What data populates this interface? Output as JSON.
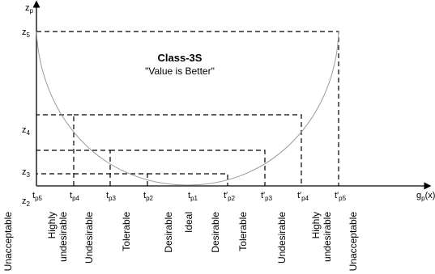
{
  "title": "Class-3S",
  "subtitle": "\"Value is Better\"",
  "axes": {
    "y_label": "z",
    "y_sub": "p",
    "x_label": "g",
    "x_sub": "p",
    "x_tail": "(x)"
  },
  "y_ticks": [
    {
      "main": "z",
      "sub": "5"
    },
    {
      "main": "z",
      "sub": "4"
    },
    {
      "main": "z",
      "sub": "3"
    },
    {
      "main": "z",
      "sub": "2"
    }
  ],
  "x_ticks": [
    {
      "main": "t",
      "sub": "p5",
      "prime": false
    },
    {
      "main": "t",
      "sub": "p4",
      "prime": false
    },
    {
      "main": "t",
      "sub": "p3",
      "prime": false
    },
    {
      "main": "t",
      "sub": "p2",
      "prime": false
    },
    {
      "main": "t",
      "sub": "p1",
      "prime": false
    },
    {
      "main": "t",
      "sub": "p2",
      "prime": true
    },
    {
      "main": "t",
      "sub": "p3",
      "prime": true
    },
    {
      "main": "t",
      "sub": "p4",
      "prime": true
    },
    {
      "main": "t",
      "sub": "p5",
      "prime": true
    }
  ],
  "region_labels": [
    {
      "lines": [
        "Unacceptable"
      ]
    },
    {
      "lines": [
        "Highly",
        "undesirable"
      ]
    },
    {
      "lines": [
        "Undesirable"
      ]
    },
    {
      "lines": [
        "Tolerable"
      ]
    },
    {
      "lines": [
        "Desirable"
      ]
    },
    {
      "lines": [
        "Ideal"
      ]
    },
    {
      "lines": [
        "Desirable"
      ]
    },
    {
      "lines": [
        "Tolerable"
      ]
    },
    {
      "lines": [
        "Undesirable"
      ]
    },
    {
      "lines": [
        "Highly",
        "undesirable"
      ]
    },
    {
      "lines": [
        "Unacceptable"
      ]
    }
  ],
  "colors": {
    "curve": "#9a9a9a",
    "lines": "#000000"
  }
}
